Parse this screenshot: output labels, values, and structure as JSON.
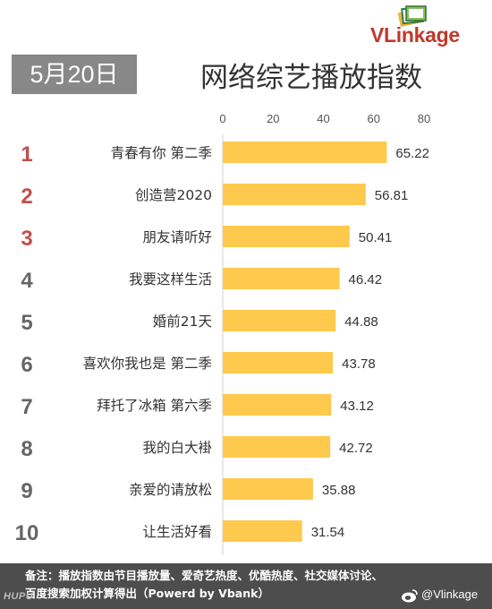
{
  "logo": {
    "text": "VLinkage"
  },
  "header": {
    "date": "5月20日",
    "title": "网络综艺播放指数"
  },
  "chart_data": {
    "type": "bar",
    "orientation": "horizontal",
    "title": "网络综艺播放指数",
    "xlim": [
      0,
      80
    ],
    "x_ticks": [
      "0",
      "20",
      "40",
      "60",
      "80"
    ],
    "ranks": [
      "1",
      "2",
      "3",
      "4",
      "5",
      "6",
      "7",
      "8",
      "9",
      "10"
    ],
    "categories": [
      "青春有你 第二季",
      "创造营2020",
      "朋友请听好",
      "我要这样生活",
      "婚前21天",
      "喜欢你我也是 第二季",
      "拜托了冰箱 第六季",
      "我的白大褂",
      "亲爱的请放松",
      "让生活好看"
    ],
    "values": [
      65.22,
      56.81,
      50.41,
      46.42,
      44.88,
      43.78,
      43.12,
      42.72,
      35.88,
      31.54
    ],
    "value_labels": [
      "65.22",
      "56.81",
      "50.41",
      "46.42",
      "44.88",
      "43.78",
      "43.12",
      "42.72",
      "35.88",
      "31.54"
    ],
    "bar_color": "#ffc94d",
    "rank_colors": {
      "top3": "#c0504d",
      "rest": "#666666"
    },
    "grid": false
  },
  "footer": {
    "line1": "备注：播放指数由节目播放量、爱奇艺热度、优酷热度、社交媒体讨论、",
    "line2": "百度搜索加权计算得出（Powerd by Vbank）"
  },
  "watermark": {
    "left": "HUPU",
    "right": "@Vlinkage"
  }
}
